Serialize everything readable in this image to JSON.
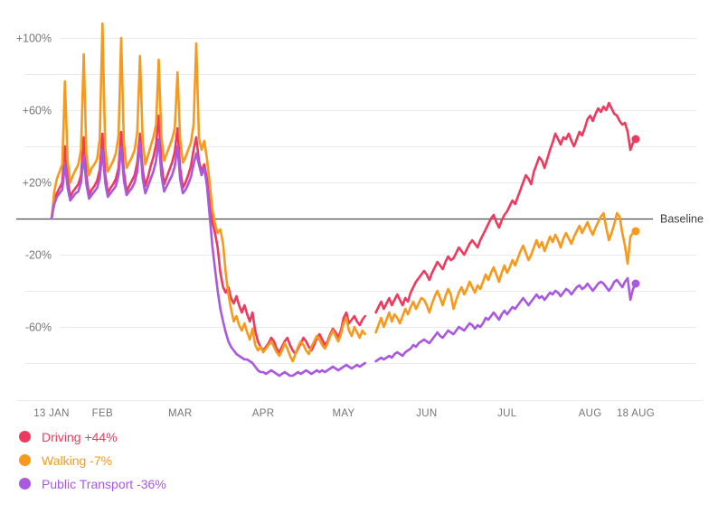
{
  "chart_data": {
    "type": "line",
    "title": "",
    "grid": true,
    "legend_position": "bottom-left",
    "grid_color": "#eaeaea",
    "axis_text_color": "#757575",
    "baseline_color": "#4d4d4d",
    "baseline_text_color": "#3d3d3d",
    "baseline": {
      "value": 0,
      "label": "Baseline"
    },
    "x_axis": {
      "ticks": [
        {
          "day": 0,
          "label": "13 JAN"
        },
        {
          "day": 19,
          "label": "FEB"
        },
        {
          "day": 48,
          "label": "MAR"
        },
        {
          "day": 79,
          "label": "APR"
        },
        {
          "day": 109,
          "label": "MAY"
        },
        {
          "day": 140,
          "label": "JUN"
        },
        {
          "day": 170,
          "label": "JUL"
        },
        {
          "day": 201,
          "label": "AUG"
        },
        {
          "day": 218,
          "label": "18 AUG"
        }
      ]
    },
    "y_axis": {
      "unit": "%",
      "range": [
        -90,
        110
      ],
      "ticks": [
        {
          "value": 100,
          "label": "+100%"
        },
        {
          "value": 80,
          "label": ""
        },
        {
          "value": 60,
          "label": "+60%"
        },
        {
          "value": 40,
          "label": ""
        },
        {
          "value": 20,
          "label": "+20%"
        },
        {
          "value": 0,
          "label": ""
        },
        {
          "value": -20,
          "label": "-20%"
        },
        {
          "value": -40,
          "label": ""
        },
        {
          "value": -60,
          "label": "-60%"
        },
        {
          "value": -80,
          "label": ""
        }
      ]
    },
    "series": [
      {
        "name": "Driving",
        "current_label": "+44%",
        "color": "#ed3a5f",
        "values": [
          0,
          10,
          14,
          17,
          20,
          40,
          22,
          12,
          15,
          17,
          19,
          24,
          45,
          24,
          13,
          16,
          18,
          21,
          27,
          47,
          25,
          14,
          17,
          19,
          22,
          28,
          48,
          26,
          15,
          18,
          21,
          24,
          31,
          47,
          27,
          18,
          23,
          29,
          34,
          41,
          57,
          31,
          19,
          23,
          27,
          31,
          37,
          50,
          28,
          17,
          20,
          24,
          29,
          38,
          45,
          32,
          26,
          30,
          22,
          8,
          -2,
          -8,
          -16,
          -30,
          -38,
          -41,
          -38,
          -44,
          -47,
          -43,
          -48,
          -52,
          -48,
          -53,
          -57,
          -52,
          -62,
          -68,
          -71,
          -73,
          -71,
          -69,
          -66,
          -68,
          -72,
          -74,
          -71,
          -68,
          -66,
          -70,
          -73,
          -75,
          -72,
          -69,
          -66,
          -68,
          -71,
          -73,
          -70,
          -66,
          -64,
          -67,
          -70,
          -68,
          -64,
          -61,
          -63,
          -66,
          -62,
          -55,
          -52,
          -58,
          -56,
          -54,
          -57,
          -59,
          -56,
          -54,
          null,
          null,
          null,
          -52,
          -49,
          -46,
          -50,
          -47,
          -44,
          -48,
          -45,
          -42,
          -45,
          -48,
          -44,
          -46,
          -41,
          -38,
          -35,
          -33,
          -31,
          -29,
          -31,
          -34,
          -30,
          -27,
          -24,
          -26,
          -28,
          -24,
          -21,
          -23,
          -22,
          -19,
          -16,
          -18,
          -20,
          -17,
          -14,
          -12,
          -14,
          -16,
          -12,
          -9,
          -6,
          -3,
          0,
          2,
          -2,
          -5,
          -1,
          2,
          4,
          7,
          10,
          8,
          12,
          16,
          20,
          24,
          22,
          19,
          26,
          30,
          34,
          32,
          28,
          33,
          38,
          42,
          47,
          44,
          41,
          45,
          44,
          47,
          43,
          40,
          44,
          48,
          46,
          50,
          55,
          57,
          54,
          58,
          61,
          59,
          62,
          60,
          64,
          61,
          58,
          57,
          54,
          52,
          53,
          48,
          38,
          42,
          44
        ]
      },
      {
        "name": "Walking",
        "current_label": "-7%",
        "color": "#f7991d",
        "values": [
          0,
          15,
          22,
          26,
          30,
          76,
          32,
          20,
          24,
          27,
          30,
          38,
          91,
          36,
          24,
          28,
          30,
          33,
          44,
          108,
          40,
          26,
          29,
          32,
          36,
          46,
          100,
          42,
          28,
          31,
          34,
          38,
          48,
          90,
          43,
          30,
          35,
          40,
          45,
          52,
          88,
          45,
          32,
          36,
          40,
          44,
          50,
          81,
          44,
          31,
          34,
          38,
          42,
          52,
          97,
          45,
          38,
          43,
          33,
          20,
          5,
          -3,
          -8,
          -6,
          -14,
          -30,
          -42,
          -50,
          -57,
          -54,
          -59,
          -62,
          -58,
          -63,
          -67,
          -61,
          -70,
          -73,
          -71,
          -74,
          -72,
          -70,
          -68,
          -71,
          -74,
          -76,
          -73,
          -69,
          -72,
          -76,
          -79,
          -75,
          -71,
          -68,
          -70,
          -73,
          -75,
          -71,
          -68,
          -65,
          -67,
          -70,
          -72,
          -69,
          -65,
          -62,
          -65,
          -68,
          -64,
          -58,
          -55,
          -62,
          -65,
          -60,
          -63,
          -66,
          -62,
          -64,
          null,
          null,
          null,
          -63,
          -59,
          -55,
          -60,
          -56,
          -52,
          -57,
          -53,
          -55,
          -58,
          -54,
          -50,
          -53,
          -49,
          -46,
          -50,
          -47,
          -44,
          -45,
          -48,
          -52,
          -47,
          -43,
          -40,
          -44,
          -48,
          -43,
          -39,
          -42,
          -50,
          -45,
          -41,
          -38,
          -42,
          -39,
          -35,
          -38,
          -41,
          -37,
          -39,
          -35,
          -31,
          -34,
          -30,
          -27,
          -31,
          -35,
          -30,
          -26,
          -30,
          -27,
          -23,
          -26,
          -22,
          -18,
          -15,
          -19,
          -23,
          -20,
          -16,
          -12,
          -16,
          -13,
          -18,
          -14,
          -10,
          -13,
          -9,
          -12,
          -16,
          -11,
          -8,
          -11,
          -14,
          -10,
          -7,
          -4,
          -8,
          -5,
          -2,
          -6,
          -9,
          -5,
          -2,
          1,
          3,
          -5,
          -12,
          -8,
          -3,
          3,
          1,
          -8,
          -15,
          -25,
          -10,
          -8,
          -7
        ]
      },
      {
        "name": "Public Transport",
        "current_label": "-36%",
        "color": "#a958e0",
        "values": [
          0,
          8,
          12,
          14,
          16,
          30,
          17,
          10,
          12,
          14,
          15,
          20,
          35,
          19,
          11,
          13,
          15,
          17,
          22,
          38,
          20,
          12,
          14,
          16,
          18,
          24,
          40,
          21,
          13,
          15,
          17,
          20,
          26,
          42,
          22,
          14,
          18,
          22,
          26,
          32,
          44,
          24,
          15,
          18,
          21,
          24,
          29,
          40,
          22,
          14,
          16,
          19,
          23,
          30,
          36,
          30,
          24,
          28,
          18,
          2,
          -15,
          -28,
          -40,
          -50,
          -57,
          -63,
          -68,
          -71,
          -73,
          -75,
          -76,
          -77,
          -78,
          -78,
          -79,
          -80,
          -82,
          -84,
          -85,
          -85,
          -86,
          -85,
          -84,
          -85,
          -86,
          -87,
          -86,
          -85,
          -86,
          -87,
          -87,
          -86,
          -85,
          -86,
          -85,
          -84,
          -85,
          -86,
          -85,
          -84,
          -85,
          -84,
          -85,
          -84,
          -83,
          -82,
          -83,
          -84,
          -83,
          -82,
          -81,
          -82,
          -83,
          -82,
          -81,
          -82,
          -81,
          -80,
          null,
          null,
          null,
          -79,
          -78,
          -77,
          -78,
          -77,
          -76,
          -77,
          -75,
          -74,
          -75,
          -76,
          -74,
          -73,
          -72,
          -70,
          -71,
          -69,
          -68,
          -67,
          -68,
          -69,
          -67,
          -65,
          -63,
          -65,
          -66,
          -64,
          -62,
          -63,
          -64,
          -62,
          -60,
          -61,
          -62,
          -60,
          -58,
          -59,
          -61,
          -59,
          -60,
          -58,
          -55,
          -56,
          -54,
          -52,
          -54,
          -56,
          -53,
          -51,
          -53,
          -51,
          -49,
          -50,
          -48,
          -46,
          -44,
          -46,
          -48,
          -46,
          -44,
          -42,
          -44,
          -43,
          -45,
          -43,
          -41,
          -42,
          -40,
          -41,
          -43,
          -41,
          -39,
          -40,
          -42,
          -40,
          -38,
          -37,
          -39,
          -38,
          -36,
          -38,
          -40,
          -38,
          -36,
          -35,
          -36,
          -38,
          -40,
          -38,
          -35,
          -34,
          -36,
          -38,
          -35,
          -33,
          -45,
          -39,
          -36
        ]
      }
    ]
  }
}
